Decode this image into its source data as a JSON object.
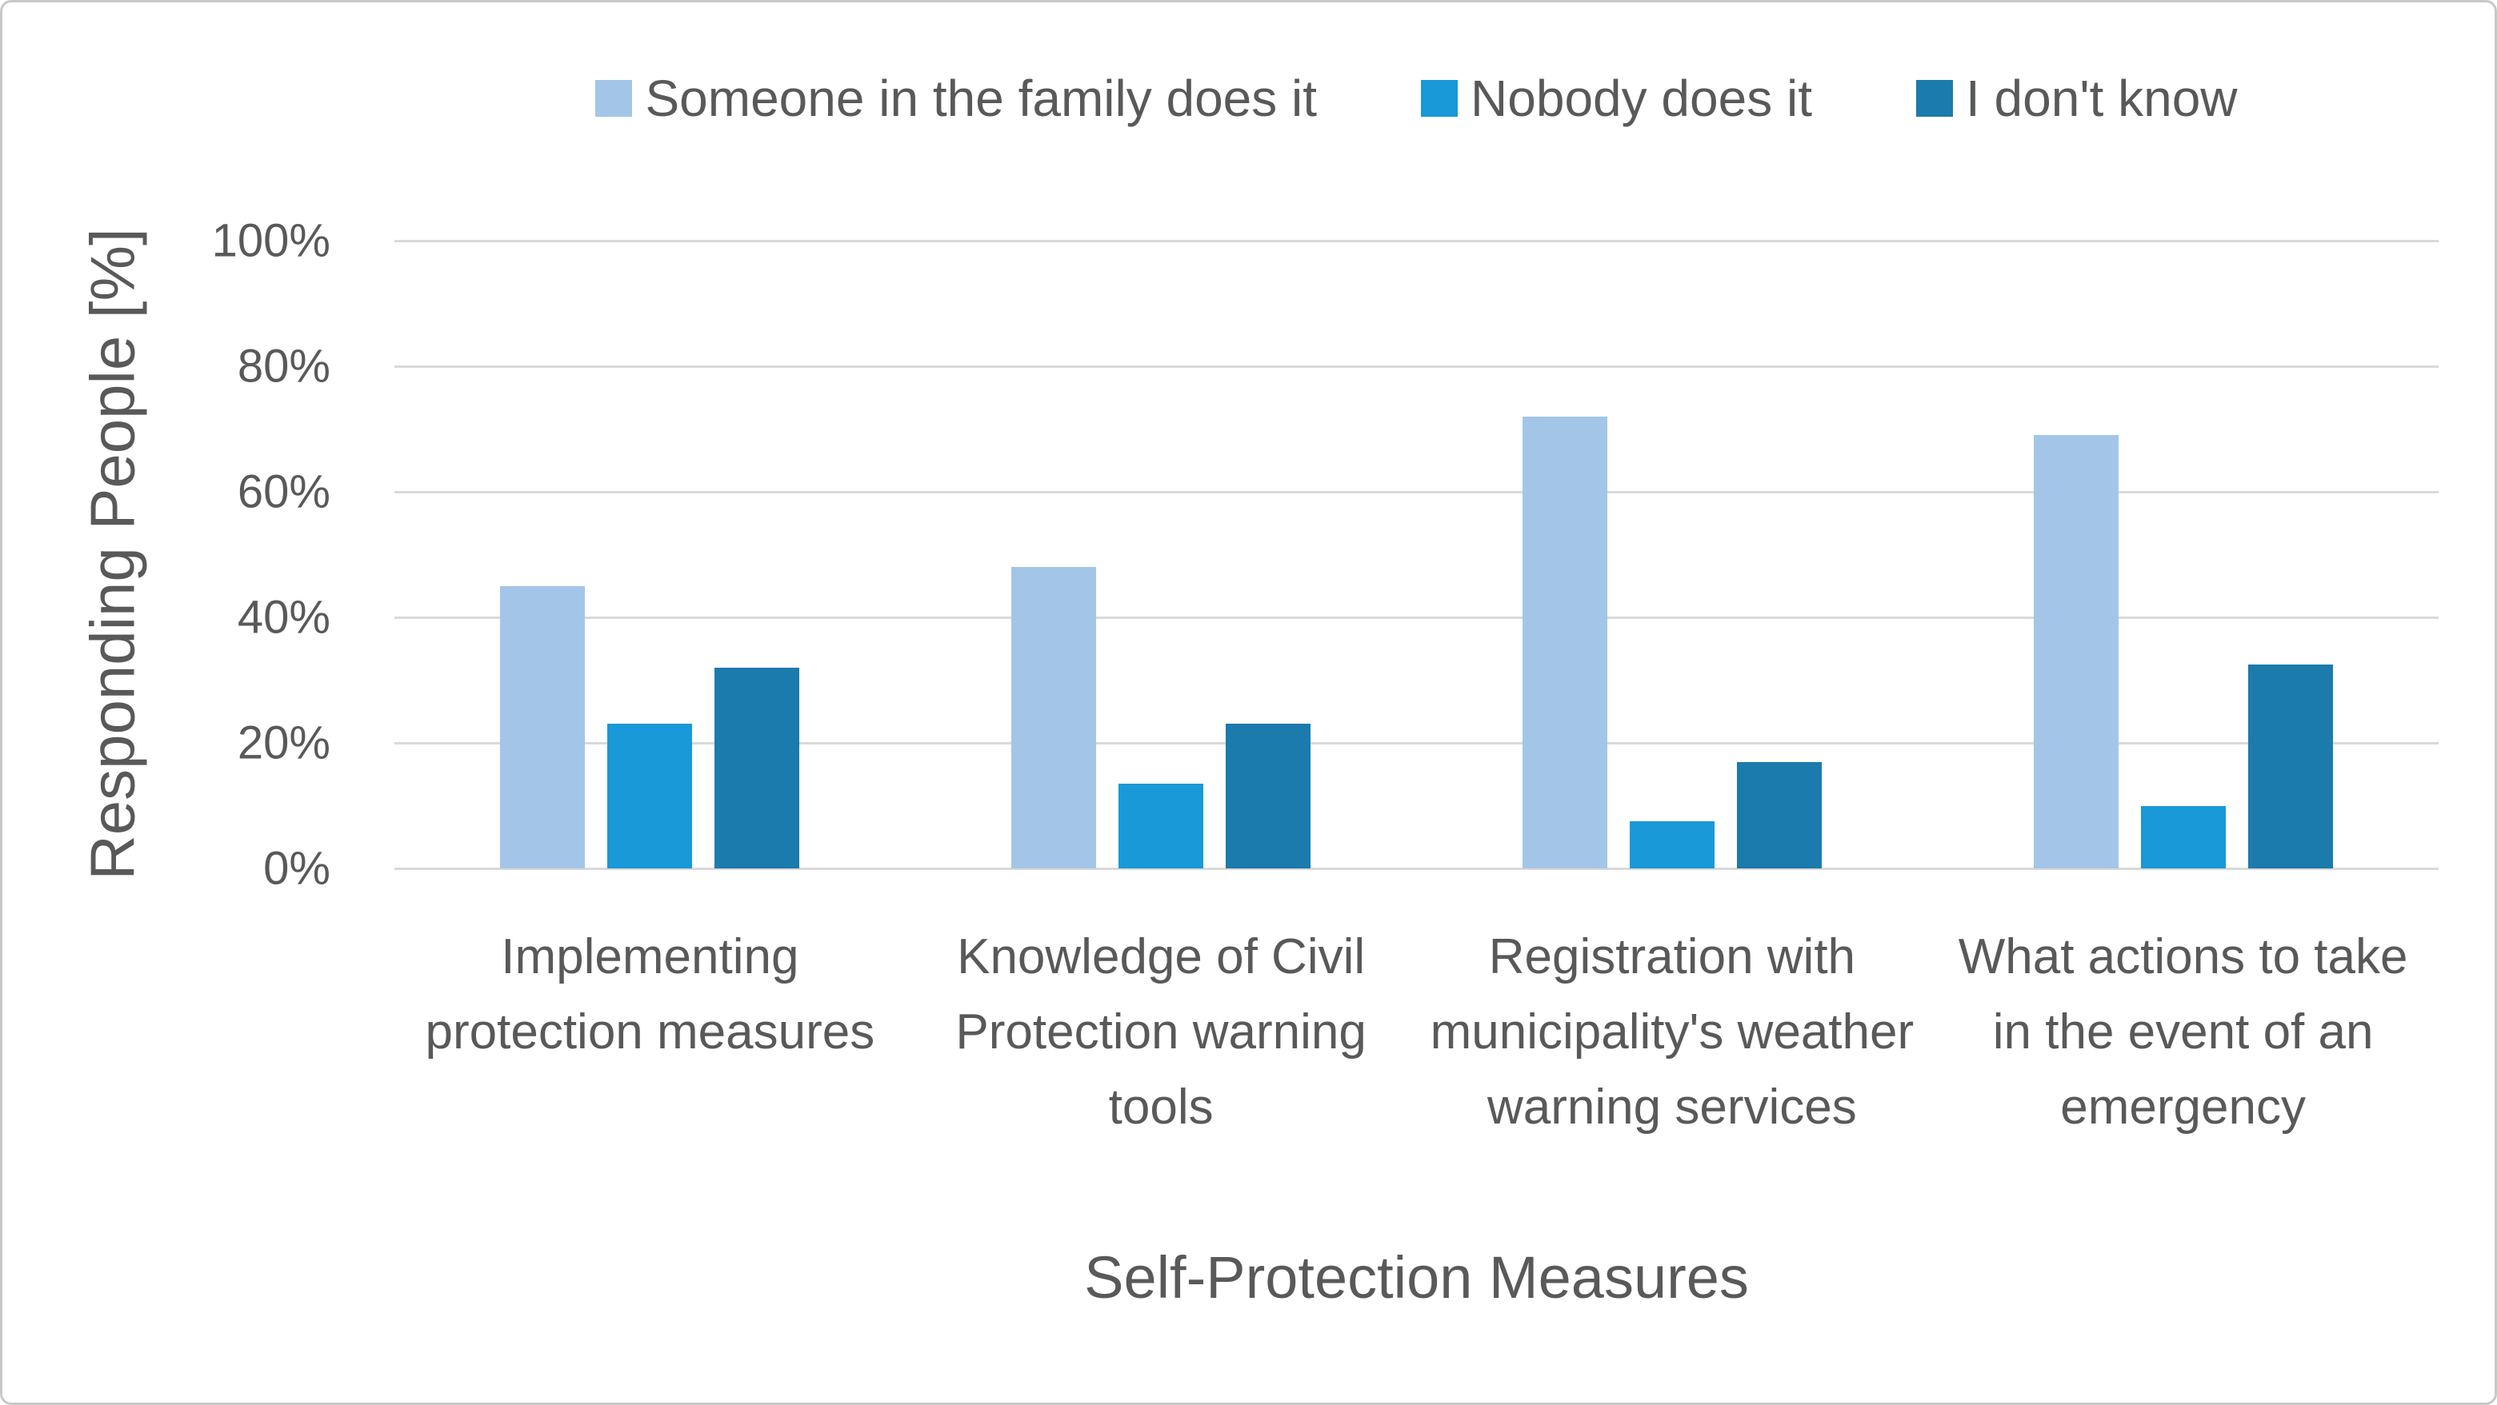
{
  "chart_data": {
    "type": "bar",
    "title": "",
    "xlabel": "Self-Protection Measures",
    "ylabel": "Responding People [%]",
    "ylim": [
      0,
      100
    ],
    "yticks": [
      0,
      20,
      40,
      60,
      80,
      100
    ],
    "ytick_labels": [
      "0%",
      "20%",
      "40%",
      "60%",
      "80%",
      "100%"
    ],
    "grid": "horizontal",
    "legend_position": "top",
    "categories": [
      "Implementing protection measures",
      "Knowledge of Civil Protection warning tools",
      "Registration with municipality's weather warning services",
      "What actions to take in the event of an emergency"
    ],
    "series": [
      {
        "name": "Someone in the family does it",
        "color": "#A3C6E8",
        "values": [
          45,
          48,
          72,
          69
        ]
      },
      {
        "name": "Nobody does it",
        "color": "#1999D7",
        "values": [
          23,
          13.5,
          7.5,
          10
        ]
      },
      {
        "name": "I don't know",
        "color": "#1B7BAC",
        "values": [
          32,
          23,
          17,
          32.5
        ]
      }
    ]
  },
  "colors": {
    "text": "#595959",
    "gridline": "#D9D9D9",
    "background": "#FFFFFF",
    "border": "#C8C8C8"
  }
}
